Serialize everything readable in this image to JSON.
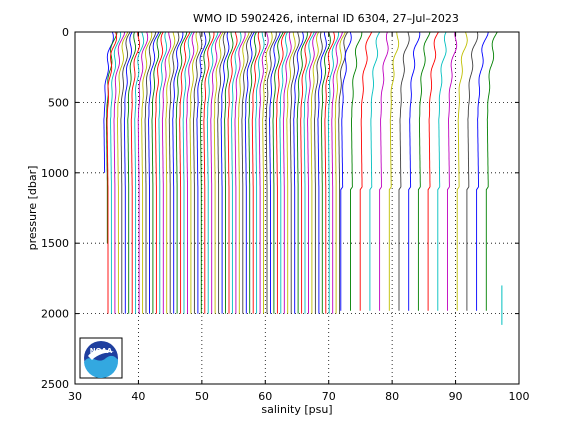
{
  "chart_data": {
    "type": "line",
    "title": "WMO ID 5902426, internal ID 6304, 27–Jul–2023",
    "xlabel": "salinity [psu]",
    "ylabel": "pressure [dbar]",
    "xlim": [
      30,
      100
    ],
    "ylim": [
      0,
      2500
    ],
    "y_reversed": true,
    "x_ticks": [
      30,
      40,
      50,
      60,
      70,
      80,
      90,
      100
    ],
    "y_ticks": [
      0,
      500,
      1000,
      1500,
      2000,
      2500
    ],
    "x_tick_labels": [
      "30",
      "40",
      "50",
      "60",
      "70",
      "80",
      "90",
      "100"
    ],
    "y_tick_labels": [
      "0",
      "500",
      "1000",
      "1500",
      "2000",
      "2500"
    ],
    "grid": "dotted",
    "plot_style": "waterfall profiles, each successive cycle offset by ~0.55 psu in salinity",
    "series_colors": [
      "#0000ff",
      "#008000",
      "#ff0000",
      "#00bfbf",
      "#bf00bf",
      "#bfbf00",
      "#404040"
    ],
    "profile_group_full": {
      "count": 68,
      "first_deep_salinity": 35.2,
      "spacing": 0.545,
      "max_pressure": 2000,
      "surface_salinity_offset": 1.2,
      "subsurface_min_offset": -0.3,
      "subsurface_min_pressure": 600
    },
    "profile_group_late": {
      "count": 16,
      "first_deep_salinity": 72.2,
      "spacing": 1.53,
      "max_pressure": 1990,
      "intermediate_pressure": 1120,
      "intermediate_salinity_shift": -1.5,
      "notes": "intermediate-depth portion of these cycles plotted between ~72 and ~97.5 psu"
    },
    "early_short_profiles": [
      {
        "salinity": 34.7,
        "max_pressure": 1000
      },
      {
        "salinity": 35.1,
        "max_pressure": 1500
      }
    ],
    "outlier_profiles": [
      {
        "salinity": 97.3,
        "min_pressure": 1800,
        "max_pressure": 2080
      }
    ]
  },
  "logo": {
    "text": "NOAA",
    "name": "noaa-logo"
  }
}
